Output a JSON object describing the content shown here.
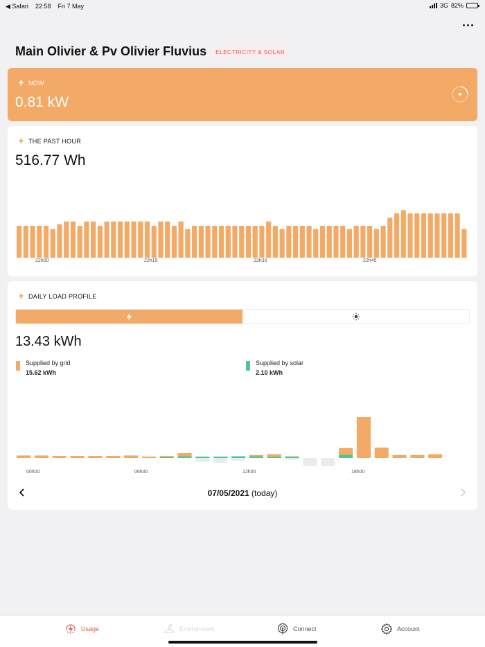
{
  "status_bar": {
    "back_app": "◀ Safari",
    "time": "22:58",
    "date": "Fri 7 May",
    "network": "3G",
    "battery": "82%",
    "battery_level": 0.82
  },
  "header": {
    "title": "Main Olivier & Pv Olivier Fluvius",
    "badge": "ELECTRICITY & SOLAR"
  },
  "now_card": {
    "label": "NOW",
    "value": "0.81 kW"
  },
  "past_hour_card": {
    "label": "THE PAST HOUR",
    "value": "516.77 Wh",
    "chart_data": {
      "type": "bar",
      "values": [
        0.59,
        0.59,
        0.59,
        0.59,
        0.59,
        0.53,
        0.62,
        0.67,
        0.67,
        0.59,
        0.67,
        0.67,
        0.59,
        0.67,
        0.67,
        0.67,
        0.67,
        0.67,
        0.67,
        0.67,
        0.59,
        0.67,
        0.67,
        0.59,
        0.67,
        0.53,
        0.59,
        0.59,
        0.59,
        0.59,
        0.59,
        0.59,
        0.59,
        0.59,
        0.59,
        0.59,
        0.59,
        0.67,
        0.59,
        0.53,
        0.59,
        0.59,
        0.59,
        0.59,
        0.53,
        0.59,
        0.59,
        0.59,
        0.59,
        0.53,
        0.59,
        0.59,
        0.59,
        0.53,
        0.59,
        0.74,
        0.82,
        0.88,
        0.82,
        0.82,
        0.82,
        0.82,
        0.82,
        0.82,
        0.82,
        0.82,
        0.53
      ],
      "x_ticks": [
        "22h00",
        "22h15",
        "22h30",
        "22h45"
      ],
      "ylim": [
        0,
        1
      ]
    }
  },
  "daily_card": {
    "label": "DAILY LOAD PROFILE",
    "value": "13.43 kWh",
    "legend": [
      {
        "label": "Supplied by grid",
        "value": "15.62 kWh",
        "color": "#f2aa66"
      },
      {
        "label": "Supplied by solar",
        "value": "2.10 kWh",
        "color": "#52c491"
      }
    ],
    "chart_data": {
      "type": "bar",
      "x_ticks": [
        "00h00",
        "06h00",
        "12h00",
        "18h00"
      ],
      "grid": [
        0.06,
        0.06,
        0.05,
        0.05,
        0.05,
        0.05,
        0.06,
        0.03,
        0.03,
        0.08,
        0,
        0,
        0,
        0.03,
        0.06,
        0.01,
        0,
        0,
        0.16,
        1.0,
        0.25,
        0.07,
        0.07,
        0.09
      ],
      "solar": [
        0,
        0,
        0,
        0,
        0,
        0,
        0,
        0,
        0.02,
        0.04,
        0.03,
        0.03,
        0.04,
        0.04,
        0.03,
        0.03,
        0,
        0,
        0.08,
        0,
        0,
        0,
        0,
        0
      ],
      "export": [
        0,
        0,
        0,
        0,
        0,
        0,
        0,
        0,
        0,
        0,
        0.08,
        0.1,
        0.06,
        0,
        0,
        0.04,
        0.17,
        0.17,
        0,
        0,
        0,
        0,
        0,
        0
      ],
      "ylim": [
        -0.2,
        1.0
      ]
    },
    "date_label": "07/05/2021",
    "date_suffix": "(today)"
  },
  "tabbar": {
    "usage": "Usage",
    "environment": "Environment",
    "connect": "Connect",
    "account": "Account",
    "active_color": "#e4584f"
  }
}
